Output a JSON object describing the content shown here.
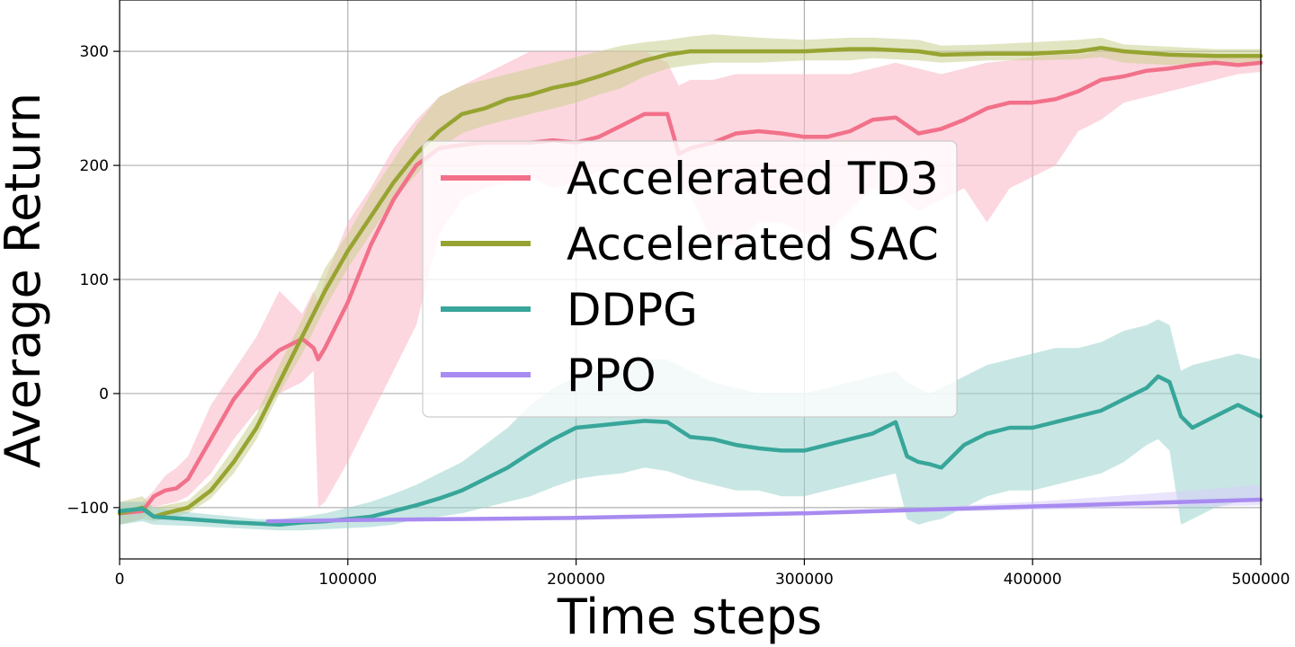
{
  "chart_data": {
    "type": "line",
    "xlabel": "Time steps",
    "ylabel": "Average Return",
    "xlim": [
      0,
      500000
    ],
    "ylim": [
      -145,
      345
    ],
    "xticks": [
      0,
      100000,
      200000,
      300000,
      400000,
      500000
    ],
    "xtick_labels": [
      "0",
      "100000",
      "200000",
      "300000",
      "400000",
      "500000"
    ],
    "yticks": [
      -100,
      0,
      100,
      200,
      300
    ],
    "ytick_labels": [
      "−100",
      "0",
      "100",
      "200",
      "300"
    ],
    "grid": true,
    "legend_position": "center",
    "series": [
      {
        "name": "Accelerated TD3",
        "color": "#f2718a",
        "band_color": "#f9b6c4",
        "x": [
          0,
          10000,
          15000,
          20000,
          25000,
          30000,
          40000,
          50000,
          60000,
          70000,
          80000,
          85000,
          87000,
          90000,
          100000,
          110000,
          120000,
          130000,
          140000,
          150000,
          160000,
          170000,
          180000,
          190000,
          200000,
          210000,
          220000,
          230000,
          240000,
          245000,
          250000,
          260000,
          270000,
          280000,
          290000,
          300000,
          310000,
          320000,
          330000,
          340000,
          350000,
          360000,
          370000,
          380000,
          390000,
          400000,
          410000,
          420000,
          430000,
          440000,
          450000,
          460000,
          470000,
          480000,
          490000,
          500000
        ],
        "y": [
          -105,
          -103,
          -90,
          -85,
          -83,
          -75,
          -40,
          -5,
          20,
          38,
          48,
          40,
          30,
          40,
          80,
          130,
          170,
          200,
          215,
          218,
          220,
          220,
          220,
          222,
          220,
          225,
          235,
          245,
          245,
          210,
          215,
          220,
          228,
          230,
          228,
          225,
          225,
          230,
          240,
          242,
          228,
          232,
          240,
          250,
          255,
          255,
          258,
          265,
          275,
          278,
          283,
          285,
          288,
          290,
          288,
          290
        ],
        "lower": [
          -115,
          -110,
          -100,
          -97,
          -95,
          -90,
          -70,
          -40,
          -15,
          0,
          10,
          20,
          -100,
          -95,
          -60,
          -20,
          20,
          60,
          140,
          170,
          180,
          185,
          190,
          180,
          185,
          195,
          195,
          195,
          195,
          180,
          175,
          130,
          130,
          150,
          150,
          140,
          140,
          160,
          180,
          175,
          160,
          170,
          180,
          150,
          180,
          190,
          200,
          230,
          240,
          255,
          260,
          265,
          270,
          275,
          280,
          282
        ],
        "upper": [
          -95,
          -95,
          -85,
          -72,
          -65,
          -55,
          -10,
          20,
          50,
          90,
          70,
          90,
          80,
          100,
          150,
          180,
          215,
          240,
          260,
          270,
          280,
          290,
          300,
          300,
          300,
          300,
          300,
          300,
          290,
          270,
          275,
          275,
          280,
          280,
          280,
          280,
          280,
          280,
          285,
          290,
          285,
          280,
          285,
          290,
          292,
          295,
          297,
          297,
          300,
          300,
          300,
          298,
          298,
          298,
          297,
          297
        ]
      },
      {
        "name": "Accelerated SAC",
        "color": "#97a431",
        "band_color": "#cbd08f",
        "x": [
          0,
          10000,
          15000,
          20000,
          30000,
          40000,
          50000,
          60000,
          70000,
          80000,
          90000,
          100000,
          110000,
          120000,
          130000,
          140000,
          150000,
          160000,
          170000,
          180000,
          190000,
          200000,
          210000,
          220000,
          230000,
          240000,
          250000,
          260000,
          280000,
          300000,
          320000,
          330000,
          350000,
          360000,
          380000,
          400000,
          420000,
          430000,
          440000,
          460000,
          480000,
          500000
        ],
        "y": [
          -105,
          -100,
          -108,
          -105,
          -100,
          -85,
          -60,
          -30,
          10,
          50,
          90,
          125,
          155,
          185,
          210,
          230,
          245,
          250,
          258,
          262,
          268,
          272,
          278,
          285,
          292,
          297,
          300,
          300,
          300,
          300,
          302,
          302,
          300,
          297,
          298,
          298,
          300,
          303,
          300,
          297,
          296,
          296
        ],
        "lower": [
          -115,
          -110,
          -112,
          -110,
          -105,
          -92,
          -70,
          -40,
          0,
          35,
          75,
          110,
          140,
          170,
          192,
          215,
          228,
          235,
          240,
          245,
          250,
          255,
          262,
          268,
          278,
          285,
          288,
          290,
          290,
          292,
          292,
          294,
          292,
          290,
          292,
          292,
          293,
          295,
          290,
          288,
          290,
          290
        ],
        "upper": [
          -95,
          -90,
          -100,
          -98,
          -94,
          -76,
          -48,
          -18,
          25,
          65,
          110,
          140,
          175,
          205,
          235,
          260,
          270,
          275,
          280,
          285,
          290,
          295,
          300,
          305,
          308,
          310,
          313,
          315,
          312,
          310,
          312,
          312,
          310,
          305,
          306,
          308,
          310,
          312,
          306,
          304,
          302,
          302
        ]
      },
      {
        "name": "DDPG",
        "color": "#38a69a",
        "band_color": "#9bd4cd",
        "x": [
          0,
          10000,
          15000,
          30000,
          50000,
          60000,
          70000,
          80000,
          90000,
          100000,
          110000,
          120000,
          130000,
          140000,
          150000,
          160000,
          170000,
          180000,
          190000,
          200000,
          210000,
          220000,
          230000,
          240000,
          250000,
          260000,
          270000,
          280000,
          290000,
          300000,
          310000,
          320000,
          330000,
          340000,
          345000,
          350000,
          355000,
          360000,
          370000,
          380000,
          390000,
          400000,
          410000,
          420000,
          430000,
          440000,
          450000,
          455000,
          460000,
          465000,
          470000,
          480000,
          490000,
          500000
        ],
        "y": [
          -103,
          -101,
          -108,
          -110,
          -113,
          -114,
          -115,
          -113,
          -112,
          -110,
          -108,
          -103,
          -98,
          -92,
          -85,
          -75,
          -65,
          -52,
          -40,
          -30,
          -28,
          -26,
          -24,
          -25,
          -38,
          -40,
          -45,
          -48,
          -50,
          -50,
          -45,
          -40,
          -35,
          -25,
          -55,
          -60,
          -62,
          -65,
          -45,
          -35,
          -30,
          -30,
          -25,
          -20,
          -15,
          -5,
          5,
          15,
          10,
          -20,
          -30,
          -20,
          -10,
          -20
        ],
        "lower": [
          -115,
          -112,
          -115,
          -116,
          -118,
          -119,
          -120,
          -120,
          -119,
          -118,
          -117,
          -115,
          -110,
          -108,
          -105,
          -100,
          -95,
          -90,
          -82,
          -75,
          -72,
          -70,
          -65,
          -68,
          -75,
          -80,
          -85,
          -85,
          -90,
          -90,
          -85,
          -80,
          -75,
          -70,
          -110,
          -115,
          -112,
          -110,
          -100,
          -90,
          -85,
          -85,
          -80,
          -75,
          -70,
          -60,
          -45,
          -40,
          -50,
          -115,
          -110,
          -100,
          -95,
          -95
        ],
        "upper": [
          -95,
          -95,
          -100,
          -104,
          -108,
          -110,
          -110,
          -108,
          -105,
          -100,
          -95,
          -88,
          -80,
          -70,
          -60,
          -45,
          -30,
          -10,
          5,
          15,
          20,
          25,
          30,
          30,
          20,
          10,
          5,
          0,
          0,
          0,
          5,
          10,
          15,
          20,
          10,
          5,
          0,
          5,
          15,
          25,
          30,
          35,
          40,
          40,
          45,
          55,
          60,
          65,
          60,
          20,
          25,
          30,
          35,
          30
        ]
      },
      {
        "name": "PPO",
        "color": "#a88bf0",
        "band_color": "#d9cdf9",
        "x": [
          65000,
          100000,
          150000,
          200000,
          250000,
          300000,
          350000,
          400000,
          450000,
          500000
        ],
        "y": [
          -112,
          -111,
          -110,
          -109,
          -107,
          -105,
          -102,
          -99,
          -96,
          -93
        ],
        "lower": [
          -113,
          -112,
          -111,
          -110,
          -108,
          -106,
          -104,
          -102,
          -100,
          -98
        ],
        "upper": [
          -111,
          -110,
          -109,
          -108,
          -106,
          -104,
          -100,
          -95,
          -88,
          -80
        ]
      }
    ]
  }
}
